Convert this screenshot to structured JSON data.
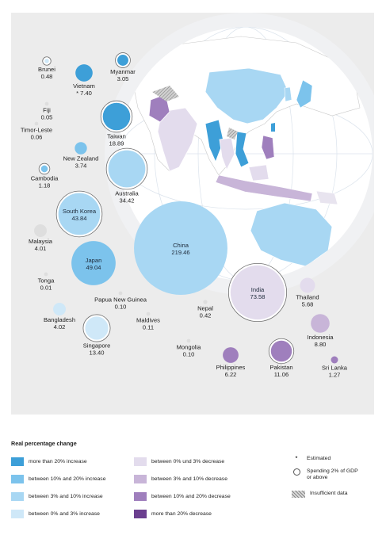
{
  "colors": {
    "background": "#ececec",
    "map_land": "#ffffff",
    "map_ocean": "#dfe6ee"
  },
  "chart_data": {
    "type": "bubble",
    "unit": "military expenditure (values as labelled)",
    "countries": [
      {
        "name": "Brunei",
        "value": "0.48",
        "category": "between 0% and 3% increase",
        "two_percent_gdp": true
      },
      {
        "name": "Vietnam",
        "value": "7.40",
        "estimated": true,
        "category": "more than 20% increase",
        "two_percent_gdp": false
      },
      {
        "name": "Myanmar",
        "value": "3.05",
        "category": "more than 20% increase",
        "two_percent_gdp": true
      },
      {
        "name": "Fiji",
        "value": "0.05",
        "category": "",
        "two_percent_gdp": false
      },
      {
        "name": "Taiwan",
        "value": "18.89",
        "category": "more than 20% increase",
        "two_percent_gdp": true
      },
      {
        "name": "Timor-Leste",
        "value": "0.06",
        "category": "",
        "two_percent_gdp": false
      },
      {
        "name": "New Zealand",
        "value": "3.74",
        "category": "between 10% and 20% increase",
        "two_percent_gdp": false
      },
      {
        "name": "Cambodia",
        "value": "1.18",
        "category": "between 10% and 20% increase",
        "two_percent_gdp": true
      },
      {
        "name": "Australia",
        "value": "34.42",
        "category": "between 3% and 10% increase",
        "two_percent_gdp": true
      },
      {
        "name": "South Korea",
        "value": "43.84",
        "category": "between 3% and 10% increase",
        "two_percent_gdp": true
      },
      {
        "name": "Malaysia",
        "value": "4.01",
        "category": "",
        "two_percent_gdp": false
      },
      {
        "name": "China",
        "value": "219.46",
        "category": "between 3% and 10% increase",
        "two_percent_gdp": false
      },
      {
        "name": "Japan",
        "value": "49.04",
        "category": "between 10% and 20% increase",
        "two_percent_gdp": false
      },
      {
        "name": "Tonga",
        "value": "0.01",
        "category": "",
        "two_percent_gdp": false
      },
      {
        "name": "India",
        "value": "73.58",
        "category": "between 0% und 3% decrease",
        "two_percent_gdp": true
      },
      {
        "name": "Papua New Guinea",
        "value": "0.10",
        "category": "",
        "two_percent_gdp": false
      },
      {
        "name": "Thailand",
        "value": "5.68",
        "category": "between 0% und 3% decrease",
        "two_percent_gdp": false
      },
      {
        "name": "Nepal",
        "value": "0.42",
        "category": "",
        "two_percent_gdp": false
      },
      {
        "name": "Bangladesh",
        "value": "4.02",
        "category": "between 0% and 3% increase",
        "two_percent_gdp": false
      },
      {
        "name": "Maldives",
        "value": "0.11",
        "category": "",
        "two_percent_gdp": false
      },
      {
        "name": "Singapore",
        "value": "13.40",
        "category": "between 0% and 3% increase",
        "two_percent_gdp": true
      },
      {
        "name": "Indonesia",
        "value": "8.80",
        "category": "between 3% and 10% decrease",
        "two_percent_gdp": false
      },
      {
        "name": "Mongolia",
        "value": "0.10",
        "category": "",
        "two_percent_gdp": false
      },
      {
        "name": "Philippines",
        "value": "6.22",
        "category": "between 10% and 20% decrease",
        "two_percent_gdp": false
      },
      {
        "name": "Pakistan",
        "value": "11.06",
        "category": "between 10% and 20% decrease",
        "two_percent_gdp": true
      },
      {
        "name": "Sri Lanka",
        "value": "1.27",
        "category": "between 10% and 20% decrease",
        "two_percent_gdp": false
      }
    ]
  },
  "legend": {
    "title": "Real percentage change",
    "items": [
      {
        "label": "more than 20% increase",
        "color": "#3d9fd8"
      },
      {
        "label": "between 10% and 20% increase",
        "color": "#7cc3ec"
      },
      {
        "label": "between 3% and 10% increase",
        "color": "#a8d7f3"
      },
      {
        "label": "between 0% and 3% increase",
        "color": "#cfe8f8"
      },
      {
        "label": "between 0% und 3% decrease",
        "color": "#e3dced"
      },
      {
        "label": "between 3% and 10% decrease",
        "color": "#c8b5d8"
      },
      {
        "label": "between 10% and 20% decrease",
        "color": "#9f7fbd"
      },
      {
        "label": "more than 20% decrease",
        "color": "#6b3f8f"
      }
    ],
    "estimated": {
      "symbol": "*",
      "label": "Estimated"
    },
    "two_percent": {
      "label_line1": "Spending 2% of GDP",
      "label_line2": "or above",
      "icon": "ring-icon"
    },
    "insufficient": {
      "label": "Insufficient data",
      "icon": "hatch-icon"
    }
  }
}
